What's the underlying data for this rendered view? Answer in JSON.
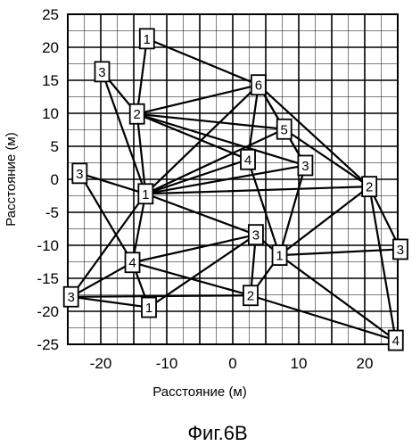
{
  "figure": {
    "caption": "Фиг.6B",
    "x_axis_title": "Расстояние (м)",
    "y_axis_title": "Расстояние (м)"
  },
  "chart_data": {
    "type": "scatter",
    "xlim": [
      -25,
      25
    ],
    "ylim": [
      -25,
      25
    ],
    "grid": true,
    "x_ticks": [
      -20,
      -10,
      0,
      10,
      20
    ],
    "y_ticks": [
      25,
      20,
      15,
      10,
      5,
      0,
      -5,
      -10,
      -15,
      -20,
      -25
    ],
    "x_tick_labels": [
      "-20",
      "-10",
      "0",
      "10",
      "20"
    ],
    "y_tick_labels": [
      "25",
      "20",
      "15",
      "10",
      "5",
      "0",
      "-5",
      "-10",
      "-15",
      "-20",
      "-25"
    ],
    "nodes": [
      {
        "id": "A",
        "label": "1",
        "x": -13.0,
        "y": 21.3
      },
      {
        "id": "B",
        "label": "3",
        "x": -19.8,
        "y": 16.3
      },
      {
        "id": "C",
        "label": "2",
        "x": -14.5,
        "y": 9.9
      },
      {
        "id": "D",
        "label": "3",
        "x": -23.2,
        "y": 0.9
      },
      {
        "id": "E",
        "label": "1",
        "x": -13.2,
        "y": -2.2
      },
      {
        "id": "F",
        "label": "4",
        "x": -15.2,
        "y": -12.6
      },
      {
        "id": "G",
        "label": "3",
        "x": -24.5,
        "y": -17.8
      },
      {
        "id": "H",
        "label": "1",
        "x": -12.7,
        "y": -19.4
      },
      {
        "id": "I",
        "label": "6",
        "x": 3.9,
        "y": 14.3
      },
      {
        "id": "J",
        "label": "5",
        "x": 7.8,
        "y": 7.6
      },
      {
        "id": "K",
        "label": "4",
        "x": 2.3,
        "y": 3.0
      },
      {
        "id": "L",
        "label": "3",
        "x": 11.0,
        "y": 2.1
      },
      {
        "id": "M",
        "label": "2",
        "x": 20.7,
        "y": -1.1
      },
      {
        "id": "N",
        "label": "3",
        "x": 3.5,
        "y": -8.4
      },
      {
        "id": "O",
        "label": "1",
        "x": 7.1,
        "y": -11.5
      },
      {
        "id": "P",
        "label": "2",
        "x": 2.7,
        "y": -17.6
      },
      {
        "id": "Q",
        "label": "3",
        "x": 25.4,
        "y": -10.6
      },
      {
        "id": "R",
        "label": "4",
        "x": 24.7,
        "y": -24.4
      }
    ],
    "edges": [
      [
        "A",
        "C"
      ],
      [
        "A",
        "I"
      ],
      [
        "B",
        "C"
      ],
      [
        "B",
        "E"
      ],
      [
        "C",
        "I"
      ],
      [
        "C",
        "J"
      ],
      [
        "C",
        "K"
      ],
      [
        "C",
        "L"
      ],
      [
        "C",
        "E"
      ],
      [
        "D",
        "E"
      ],
      [
        "D",
        "F"
      ],
      [
        "E",
        "I"
      ],
      [
        "E",
        "J"
      ],
      [
        "E",
        "K"
      ],
      [
        "E",
        "L"
      ],
      [
        "E",
        "M"
      ],
      [
        "E",
        "N"
      ],
      [
        "E",
        "F"
      ],
      [
        "E",
        "G"
      ],
      [
        "I",
        "J"
      ],
      [
        "I",
        "K"
      ],
      [
        "I",
        "L"
      ],
      [
        "I",
        "M"
      ],
      [
        "J",
        "L"
      ],
      [
        "J",
        "M"
      ],
      [
        "K",
        "O"
      ],
      [
        "L",
        "O"
      ],
      [
        "M",
        "O"
      ],
      [
        "M",
        "Q"
      ],
      [
        "M",
        "R"
      ],
      [
        "N",
        "O"
      ],
      [
        "N",
        "F"
      ],
      [
        "N",
        "H"
      ],
      [
        "N",
        "P"
      ],
      [
        "O",
        "P"
      ],
      [
        "O",
        "Q"
      ],
      [
        "O",
        "R"
      ],
      [
        "F",
        "G"
      ],
      [
        "F",
        "H"
      ],
      [
        "F",
        "P"
      ],
      [
        "G",
        "H"
      ],
      [
        "G",
        "P"
      ],
      [
        "P",
        "R"
      ]
    ]
  }
}
